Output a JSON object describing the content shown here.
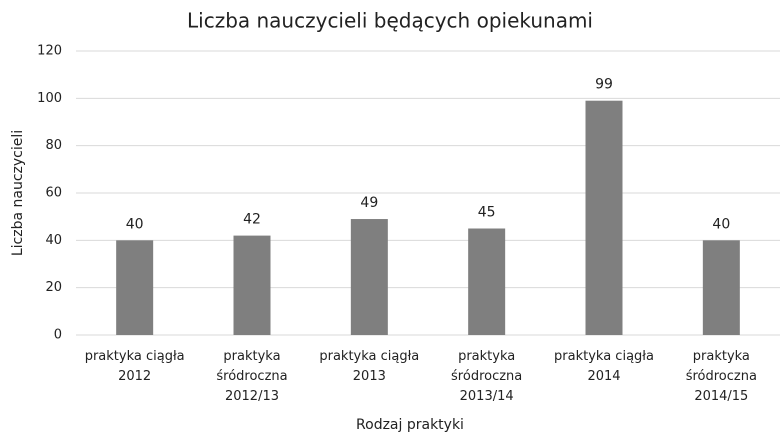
{
  "chart_data": {
    "type": "bar",
    "title": "Liczba nauczycieli będących opiekunami",
    "x_label": "Rodzaj praktyki",
    "y_label": "Liczba nauczycieli",
    "categories": [
      "praktyka ciągła 2012",
      "praktyka śródroczna 2012/13",
      "praktyka ciągła 2013",
      "praktyka śródroczna 2013/14",
      "praktyka ciągła 2014",
      "praktyka śródroczna 2014/15"
    ],
    "values": [
      40,
      42,
      49,
      45,
      99,
      40
    ],
    "color": "#7f7f7f",
    "ylim": [
      0,
      120
    ],
    "yticks": [
      0,
      20,
      40,
      60,
      80,
      100,
      120
    ],
    "grid": true
  }
}
